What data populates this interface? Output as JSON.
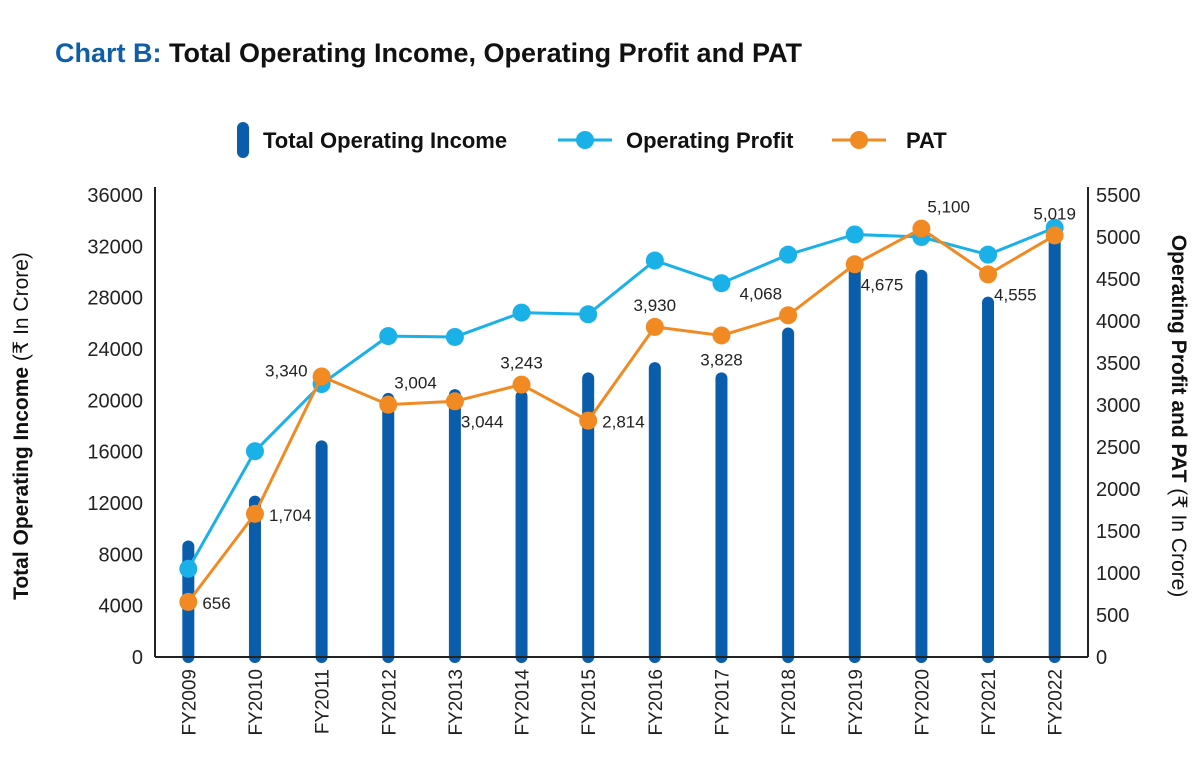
{
  "title_prefix": "Chart B:",
  "title_main": "Total Operating Income, Operating Profit and PAT",
  "colors": {
    "income": "#0a5dab",
    "op_profit": "#1ab0e8",
    "pat": "#f28a23",
    "title_accent": "#0f5fa8"
  },
  "chart_data": {
    "type": "bar",
    "categories": [
      "FY2009",
      "FY2010",
      "FY2011",
      "FY2012",
      "FY2013",
      "FY2014",
      "FY2015",
      "FY2016",
      "FY2017",
      "FY2018",
      "FY2019",
      "FY2020",
      "FY2021",
      "FY2022"
    ],
    "ylabel_left_bold": "Total Operating Income",
    "ylabel_left_normal": " (₹ In Crore)",
    "ylabel_right_bold": "Operating Profit and PAT",
    "ylabel_right_normal": " (₹ In Crore)",
    "ylim_left": [
      0,
      36000
    ],
    "ylim_right": [
      0,
      5500
    ],
    "yticks_left": [
      "0",
      "4000",
      "8000",
      "12000",
      "16000",
      "20000",
      "24000",
      "28000",
      "32000",
      "36000"
    ],
    "yticks_right": [
      "0",
      "500",
      "1000",
      "1500",
      "2000",
      "2500",
      "3000",
      "3500",
      "4000",
      "4500",
      "5000",
      "5500"
    ],
    "legend": [
      "Total Operating Income",
      "Operating Profit",
      "PAT"
    ],
    "series": [
      {
        "name": "Total Operating Income",
        "axis": "left",
        "type": "bar",
        "values": [
          9000,
          12500,
          16800,
          20500,
          20800,
          20700,
          22100,
          22900,
          22100,
          25600,
          31000,
          30100,
          28000,
          33300
        ]
      },
      {
        "name": "Operating Profit",
        "axis": "right",
        "type": "line",
        "values": [
          1050,
          2450,
          3250,
          3820,
          3810,
          4100,
          4080,
          4720,
          4450,
          4790,
          5030,
          5000,
          4790,
          5110
        ]
      },
      {
        "name": "PAT",
        "axis": "right",
        "type": "line",
        "values": [
          656,
          1704,
          3340,
          3004,
          3044,
          3243,
          2814,
          3930,
          3828,
          4068,
          4675,
          5100,
          4555,
          5019
        ]
      }
    ],
    "data_labels": [
      {
        "index": 0,
        "text": "656",
        "pos": "right"
      },
      {
        "index": 1,
        "text": "1,704",
        "pos": "right"
      },
      {
        "index": 2,
        "text": "3,340",
        "pos": "left"
      },
      {
        "index": 3,
        "text": "3,004",
        "pos": "above-right"
      },
      {
        "index": 4,
        "text": "3,044",
        "pos": "below-right"
      },
      {
        "index": 5,
        "text": "3,243",
        "pos": "above"
      },
      {
        "index": 6,
        "text": "2,814",
        "pos": "right"
      },
      {
        "index": 7,
        "text": "3,930",
        "pos": "above"
      },
      {
        "index": 8,
        "text": "3,828",
        "pos": "below"
      },
      {
        "index": 9,
        "text": "4,068",
        "pos": "above-left"
      },
      {
        "index": 10,
        "text": "4,675",
        "pos": "below-right"
      },
      {
        "index": 11,
        "text": "5,100",
        "pos": "above-right"
      },
      {
        "index": 12,
        "text": "4,555",
        "pos": "below-right"
      },
      {
        "index": 13,
        "text": "5,019",
        "pos": "above"
      }
    ],
    "legend_position": "top-center",
    "grid": false
  }
}
